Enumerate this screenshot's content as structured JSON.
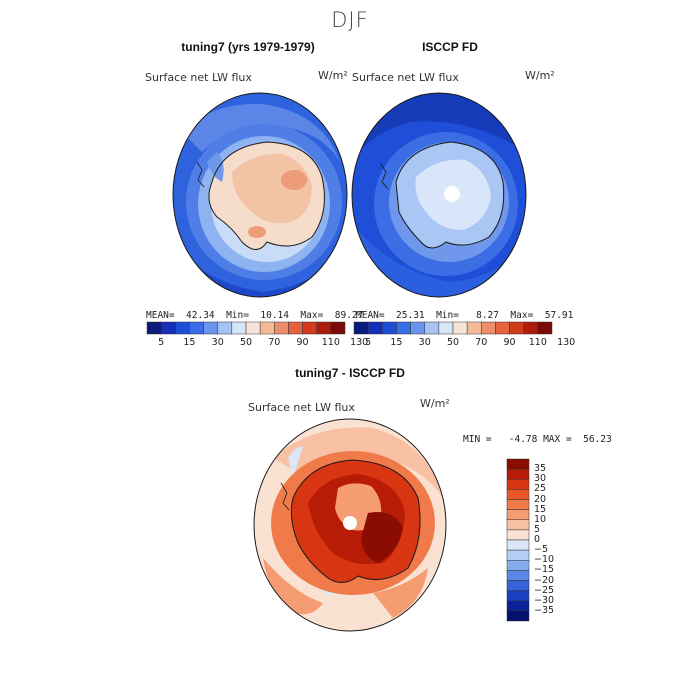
{
  "page": {
    "season": "DJF"
  },
  "panels": [
    {
      "id": "model",
      "title": "tuning7 (yrs 1979-1979)",
      "field_label": "Surface net LW flux",
      "unit": "W/m²",
      "stats": "MEAN=  42.34  Min=  10.14  Max=  89.27",
      "fill_level": "warm"
    },
    {
      "id": "obs",
      "title": "ISCCP FD",
      "field_label": "Surface net LW flux",
      "unit": "W/m²",
      "stats": "MEAN=  25.31  Min=   8.27  Max=  57.91",
      "fill_level": "cool"
    }
  ],
  "shared_colorbar": {
    "ticks": [
      "5",
      "15",
      "30",
      "50",
      "70",
      "90",
      "110",
      "130"
    ],
    "colors": [
      "#0a1a78",
      "#1530b8",
      "#1f4fd8",
      "#3a6ee8",
      "#6a95ef",
      "#a6c3f3",
      "#d7e5f8",
      "#f8e4d6",
      "#f5b99a",
      "#ee8f6c",
      "#e4633e",
      "#d43a1c",
      "#ad1c0c",
      "#7a0a05"
    ]
  },
  "difference": {
    "title": "tuning7 - ISCCP FD",
    "field_label": "Surface net LW flux",
    "unit": "W/m²",
    "stats": "MIN =   -4.78 MAX =  56.23",
    "colorbar_ticks": [
      "35",
      "30",
      "25",
      "20",
      "15",
      "10",
      "5",
      "0",
      "−5",
      "−10",
      "−15",
      "−20",
      "−25",
      "−30",
      "−35"
    ],
    "colorbar_colors": [
      "#8b0d02",
      "#b81c07",
      "#d83512",
      "#e8562a",
      "#f07a4a",
      "#f59c73",
      "#f8c1a3",
      "#fae2d2",
      "#dbe6f7",
      "#b3cdf4",
      "#86acee",
      "#5b88e6",
      "#3463da",
      "#1a40c1",
      "#0a2398",
      "#050f6c"
    ]
  }
}
